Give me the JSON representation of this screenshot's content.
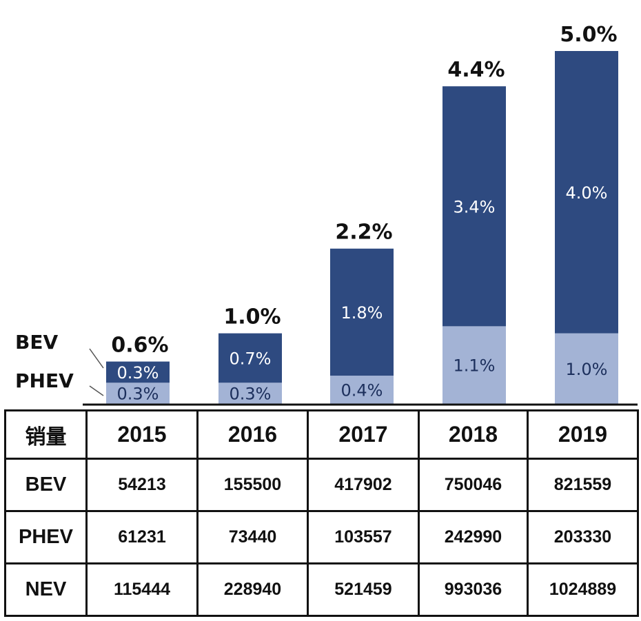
{
  "chart_data": {
    "type": "bar",
    "stacked": true,
    "categories": [
      "2015",
      "2016",
      "2017",
      "2018",
      "2019"
    ],
    "series": [
      {
        "name": "PHEV",
        "values": [
          0.3,
          0.3,
          0.4,
          1.1,
          1.0
        ],
        "labels": [
          "0.3%",
          "0.3%",
          "0.4%",
          "1.1%",
          "1.0%"
        ],
        "color": "#a3b3d5",
        "label_color": "#1c2f5c"
      },
      {
        "name": "BEV",
        "values": [
          0.3,
          0.7,
          1.8,
          3.4,
          4.0
        ],
        "labels": [
          "0.3%",
          "0.7%",
          "1.8%",
          "3.4%",
          "4.0%"
        ],
        "color": "#2e4a80",
        "label_color": "#ffffff"
      }
    ],
    "totals": [
      0.6,
      1.0,
      2.2,
      4.4,
      5.0
    ],
    "total_labels": [
      "0.6%",
      "1.0%",
      "2.2%",
      "4.4%",
      "5.0%"
    ],
    "ylim": [
      0,
      5.0
    ]
  },
  "table": {
    "corner": "销量",
    "rows": [
      {
        "name": "BEV",
        "values": [
          "54213",
          "155500",
          "417902",
          "750046",
          "821559"
        ]
      },
      {
        "name": "PHEV",
        "values": [
          "61231",
          "73440",
          "103557",
          "242990",
          "203330"
        ]
      },
      {
        "name": "NEV",
        "values": [
          "115444",
          "228940",
          "521459",
          "993036",
          "1024889"
        ]
      }
    ]
  },
  "colors": {
    "bev": "#2e4a80",
    "phev": "#a3b3d5",
    "axis": "#111111"
  }
}
